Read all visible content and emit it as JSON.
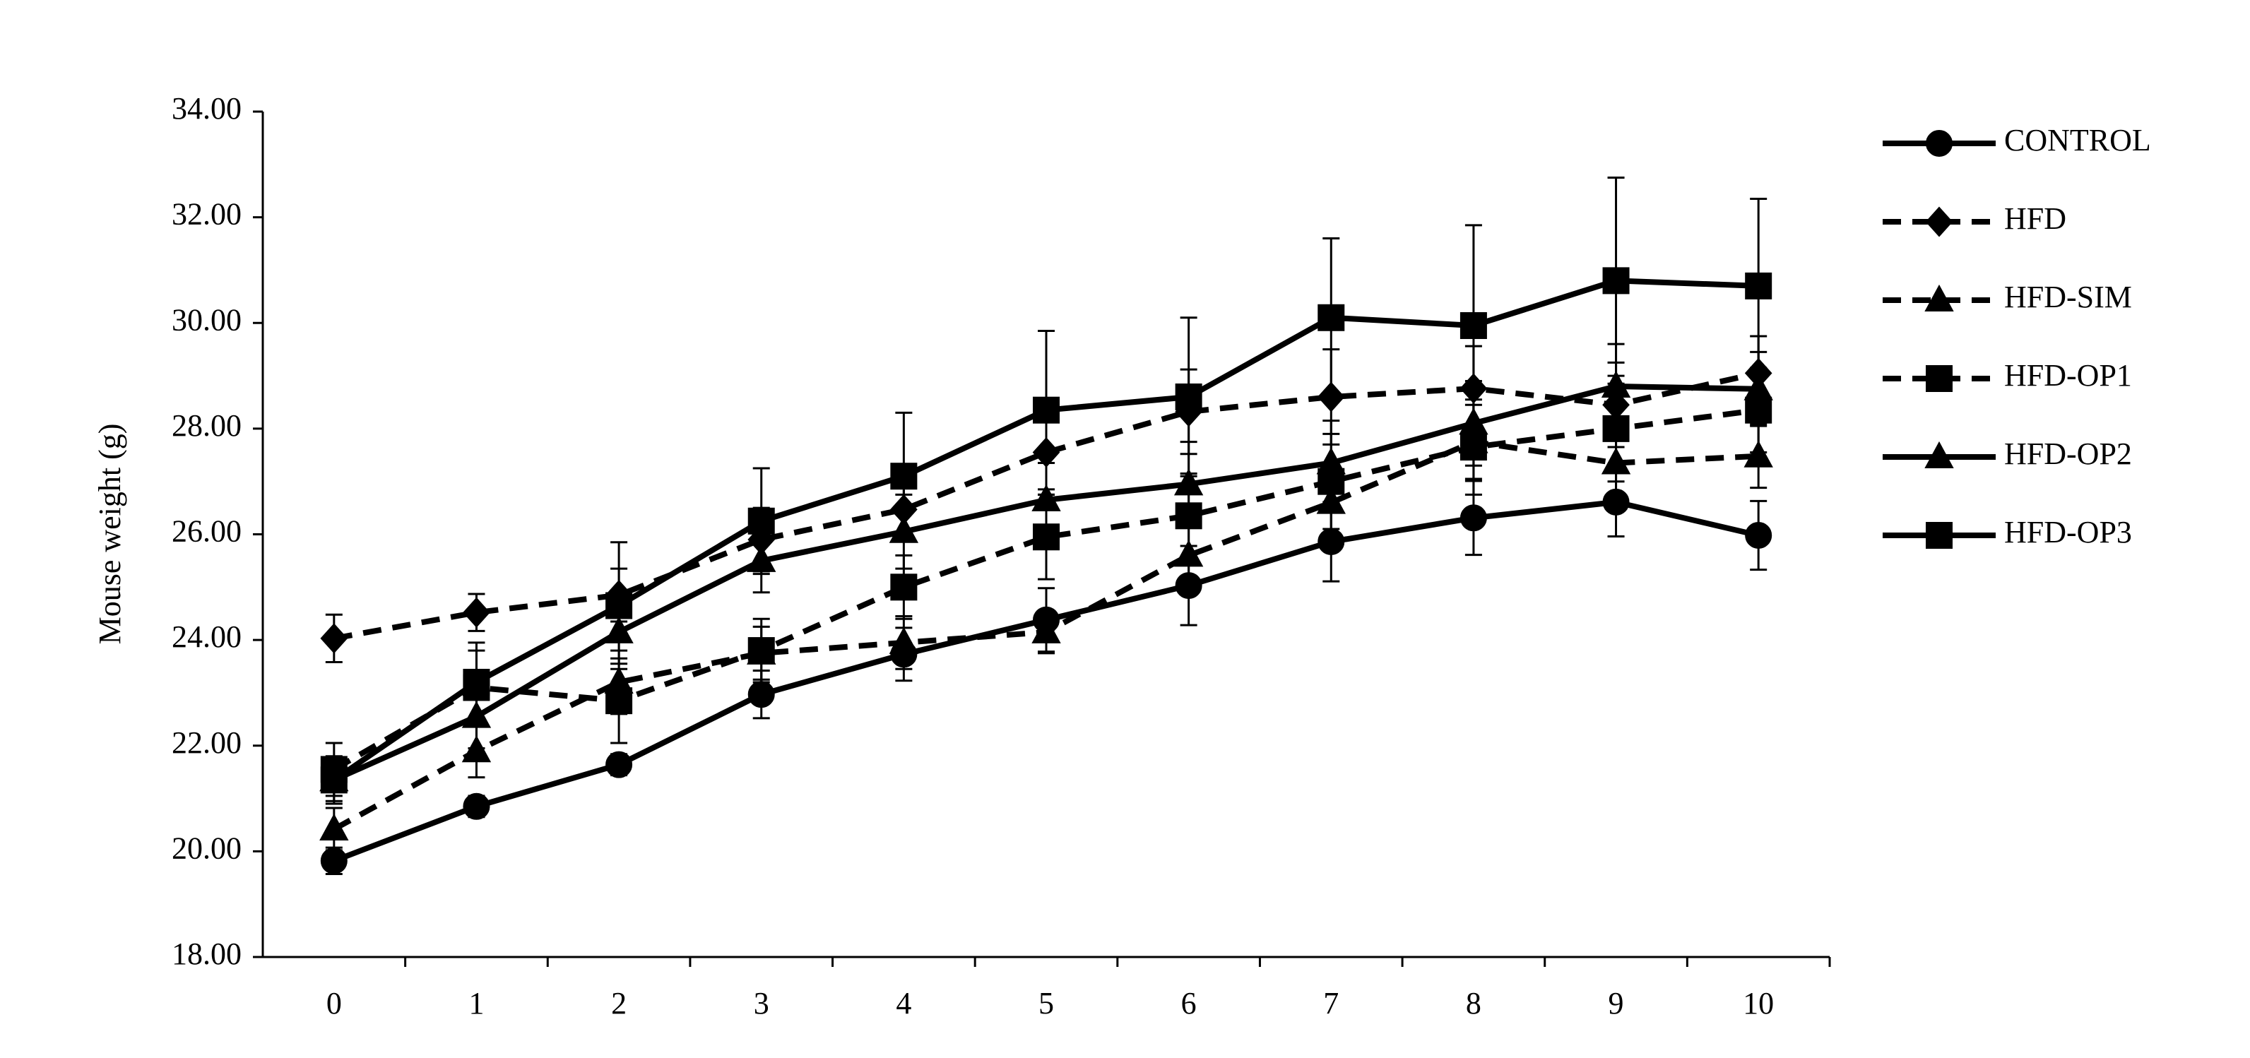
{
  "chart_data": {
    "type": "line",
    "y_label": "Mouse weight (g)",
    "categories": [
      "0",
      "1",
      "2",
      "3",
      "4",
      "5",
      "6",
      "7",
      "8",
      "9",
      "10"
    ],
    "ylim": [
      18,
      34
    ],
    "yticks": [
      {
        "value": 18,
        "label": "18.00"
      },
      {
        "value": 20,
        "label": "20.00"
      },
      {
        "value": 22,
        "label": "22.00"
      },
      {
        "value": 24,
        "label": "24.00"
      },
      {
        "value": 26,
        "label": "26.00"
      },
      {
        "value": 28,
        "label": "28.00"
      },
      {
        "value": 30,
        "label": "30.00"
      },
      {
        "value": 32,
        "label": "32.00"
      },
      {
        "value": 34,
        "label": "34.00"
      }
    ],
    "grid": false,
    "legend": "right",
    "series": [
      {
        "name": "CONTROL",
        "color": "#000000",
        "dashed": false,
        "marker": "circle",
        "values": [
          19.82,
          20.85,
          21.64,
          22.97,
          23.73,
          24.38,
          25.03,
          25.86,
          26.31,
          26.61,
          25.98
        ],
        "errors": [
          0.25,
          0.2,
          0.2,
          0.45,
          0.5,
          0.6,
          0.75,
          0.75,
          0.7,
          0.65,
          0.65
        ]
      },
      {
        "name": "HFD",
        "color": "#000000",
        "dashed": true,
        "marker": "diamond",
        "values": [
          24.03,
          24.52,
          24.85,
          25.9,
          26.47,
          27.55,
          28.32,
          28.6,
          28.76,
          28.45,
          29.05
        ],
        "errors": [
          0.45,
          0.35,
          0.5,
          0.6,
          0.6,
          0.8,
          0.8,
          0.9,
          0.8,
          0.8,
          0.7
        ]
      },
      {
        "name": "HFD-SIM",
        "color": "#000000",
        "dashed": true,
        "marker": "triangle",
        "values": [
          20.42,
          21.9,
          23.2,
          23.75,
          23.95,
          24.15,
          25.6,
          26.6,
          27.75,
          27.35,
          27.48
        ],
        "errors": [
          0.4,
          0.5,
          0.6,
          0.5,
          0.5,
          0.4,
          0.6,
          0.7,
          0.7,
          0.6,
          0.6
        ]
      },
      {
        "name": "HFD-OP1",
        "color": "#000000",
        "dashed": true,
        "marker": "square",
        "values": [
          21.55,
          23.1,
          22.85,
          23.8,
          25.0,
          25.95,
          26.35,
          27.0,
          27.65,
          28.0,
          28.35
        ],
        "errors": [
          0.5,
          0.7,
          0.8,
          0.6,
          0.6,
          0.8,
          0.8,
          0.9,
          0.9,
          1.0,
          0.8
        ]
      },
      {
        "name": "HFD-OP2",
        "color": "#000000",
        "dashed": false,
        "marker": "triangle",
        "values": [
          21.35,
          22.55,
          24.15,
          25.5,
          26.05,
          26.65,
          26.95,
          27.35,
          28.1,
          28.8,
          28.75
        ],
        "errors": [
          0.4,
          0.6,
          0.6,
          0.6,
          0.7,
          0.7,
          0.8,
          0.8,
          0.8,
          0.8,
          0.7
        ]
      },
      {
        "name": "HFD-OP3",
        "color": "#000000",
        "dashed": false,
        "marker": "square",
        "values": [
          21.35,
          23.2,
          24.65,
          26.25,
          27.1,
          28.35,
          28.6,
          30.1,
          29.95,
          30.8,
          30.7
        ],
        "errors": [
          0.45,
          0.75,
          1.2,
          1.0,
          1.2,
          1.5,
          1.5,
          1.5,
          1.9,
          1.95,
          1.65
        ]
      }
    ]
  }
}
